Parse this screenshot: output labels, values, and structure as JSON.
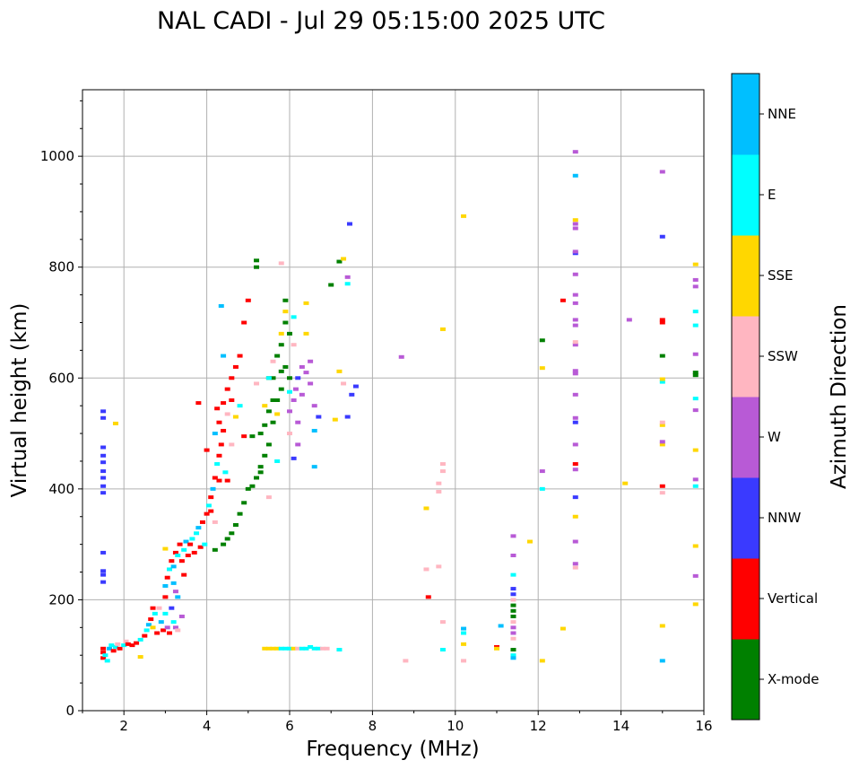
{
  "chart_data": {
    "type": "scatter",
    "title": "NAL CADI - Jul 29 05:15:00 2025 UTC",
    "xlabel": "Frequency (MHz)",
    "ylabel": "Virtual height (km)",
    "xlim": [
      1,
      16
    ],
    "ylim": [
      0,
      1120
    ],
    "xticks": [
      2,
      4,
      6,
      8,
      10,
      12,
      14,
      16
    ],
    "yticks": [
      0,
      200,
      400,
      600,
      800,
      1000
    ],
    "grid": true,
    "colorbar": {
      "label": "Azimuth Direction",
      "categories": [
        "X-mode",
        "Vertical",
        "NNW",
        "W",
        "SSW",
        "SSE",
        "E",
        "NNE"
      ],
      "colors": [
        "#008000",
        "#ff0000",
        "#3a3aff",
        "#b85ad6",
        "#ffb6c1",
        "#ffd700",
        "#00ffff",
        "#00bfff"
      ]
    },
    "points_format": "[frequency_MHz, virtual_height_km, direction_index]",
    "points": [
      [
        1.5,
        95,
        1
      ],
      [
        1.5,
        105,
        1
      ],
      [
        1.5,
        112,
        1
      ],
      [
        1.55,
        100,
        6
      ],
      [
        1.6,
        90,
        6
      ],
      [
        1.65,
        112,
        7
      ],
      [
        1.7,
        118,
        6
      ],
      [
        1.75,
        108,
        1
      ],
      [
        1.8,
        115,
        6
      ],
      [
        1.85,
        120,
        4
      ],
      [
        1.9,
        112,
        1
      ],
      [
        2.0,
        118,
        6
      ],
      [
        2.05,
        125,
        4
      ],
      [
        2.1,
        120,
        1
      ],
      [
        2.2,
        118,
        1
      ],
      [
        2.3,
        122,
        1
      ],
      [
        2.4,
        128,
        6
      ],
      [
        1.8,
        518,
        5
      ],
      [
        2.4,
        97,
        5
      ],
      [
        1.5,
        232,
        2
      ],
      [
        1.5,
        245,
        2
      ],
      [
        1.5,
        252,
        2
      ],
      [
        1.5,
        285,
        2
      ],
      [
        1.5,
        393,
        2
      ],
      [
        1.5,
        405,
        2
      ],
      [
        1.5,
        420,
        2
      ],
      [
        1.5,
        432,
        2
      ],
      [
        1.5,
        448,
        2
      ],
      [
        1.5,
        460,
        2
      ],
      [
        1.5,
        475,
        2
      ],
      [
        1.5,
        528,
        2
      ],
      [
        1.5,
        540,
        2
      ],
      [
        2.5,
        135,
        1
      ],
      [
        2.55,
        145,
        6
      ],
      [
        2.6,
        155,
        7
      ],
      [
        2.65,
        165,
        1
      ],
      [
        2.7,
        150,
        5
      ],
      [
        2.75,
        175,
        6
      ],
      [
        2.8,
        140,
        1
      ],
      [
        2.85,
        185,
        4
      ],
      [
        2.9,
        160,
        7
      ],
      [
        2.95,
        145,
        1
      ],
      [
        3.0,
        175,
        6
      ],
      [
        3.05,
        150,
        3
      ],
      [
        3.1,
        140,
        1
      ],
      [
        3.15,
        185,
        2
      ],
      [
        3.2,
        160,
        6
      ],
      [
        3.25,
        150,
        3
      ],
      [
        3.3,
        145,
        4
      ],
      [
        3.4,
        170,
        3
      ],
      [
        2.7,
        185,
        1
      ],
      [
        3.0,
        205,
        1
      ],
      [
        3.0,
        225,
        7
      ],
      [
        3.05,
        240,
        1
      ],
      [
        3.1,
        255,
        6
      ],
      [
        3.15,
        270,
        1
      ],
      [
        3.2,
        260,
        7
      ],
      [
        3.25,
        285,
        1
      ],
      [
        3.3,
        280,
        6
      ],
      [
        3.35,
        300,
        1
      ],
      [
        3.4,
        270,
        1
      ],
      [
        3.45,
        290,
        6
      ],
      [
        3.5,
        305,
        7
      ],
      [
        3.55,
        280,
        1
      ],
      [
        3.6,
        300,
        1
      ],
      [
        3.65,
        310,
        6
      ],
      [
        3.7,
        285,
        1
      ],
      [
        3.75,
        320,
        6
      ],
      [
        3.8,
        330,
        7
      ],
      [
        3.85,
        295,
        1
      ],
      [
        3.9,
        340,
        1
      ],
      [
        3.95,
        300,
        6
      ],
      [
        3.45,
        245,
        1
      ],
      [
        3.2,
        230,
        7
      ],
      [
        3.0,
        292,
        5
      ],
      [
        3.25,
        215,
        3
      ],
      [
        3.3,
        205,
        7
      ],
      [
        4.0,
        355,
        1
      ],
      [
        4.05,
        370,
        6
      ],
      [
        4.1,
        385,
        1
      ],
      [
        4.15,
        400,
        7
      ],
      [
        4.2,
        420,
        1
      ],
      [
        4.25,
        445,
        6
      ],
      [
        4.3,
        460,
        1
      ],
      [
        4.35,
        480,
        1
      ],
      [
        4.2,
        500,
        7
      ],
      [
        4.3,
        520,
        1
      ],
      [
        4.25,
        545,
        1
      ],
      [
        4.4,
        555,
        1
      ],
      [
        4.1,
        360,
        1
      ],
      [
        4.2,
        340,
        4
      ],
      [
        4.3,
        415,
        1
      ],
      [
        4.5,
        415,
        1
      ],
      [
        4.45,
        430,
        6
      ],
      [
        4.4,
        505,
        1
      ],
      [
        4.5,
        535,
        4
      ],
      [
        4.6,
        560,
        1
      ],
      [
        4.5,
        580,
        1
      ],
      [
        4.6,
        600,
        1
      ],
      [
        4.7,
        620,
        1
      ],
      [
        4.8,
        640,
        1
      ],
      [
        4.4,
        640,
        7
      ],
      [
        4.35,
        730,
        7
      ],
      [
        4.9,
        700,
        1
      ],
      [
        5.0,
        740,
        1
      ],
      [
        4.7,
        530,
        5
      ],
      [
        4.9,
        495,
        1
      ],
      [
        4.0,
        470,
        1
      ],
      [
        3.8,
        555,
        1
      ],
      [
        4.6,
        480,
        4
      ],
      [
        4.8,
        550,
        6
      ],
      [
        4.2,
        290,
        0
      ],
      [
        4.4,
        300,
        0
      ],
      [
        4.5,
        310,
        0
      ],
      [
        4.6,
        320,
        0
      ],
      [
        4.7,
        335,
        0
      ],
      [
        4.8,
        355,
        0
      ],
      [
        4.9,
        375,
        0
      ],
      [
        5.0,
        400,
        0
      ],
      [
        5.1,
        405,
        0
      ],
      [
        5.2,
        420,
        0
      ],
      [
        5.3,
        440,
        0
      ],
      [
        5.4,
        460,
        0
      ],
      [
        5.5,
        480,
        0
      ],
      [
        5.3,
        500,
        0
      ],
      [
        5.6,
        520,
        0
      ],
      [
        5.5,
        540,
        0
      ],
      [
        5.7,
        560,
        0
      ],
      [
        5.8,
        580,
        0
      ],
      [
        5.6,
        600,
        0
      ],
      [
        5.9,
        620,
        0
      ],
      [
        5.7,
        640,
        0
      ],
      [
        5.8,
        660,
        0
      ],
      [
        6.0,
        680,
        0
      ],
      [
        5.9,
        700,
        0
      ],
      [
        5.9,
        740,
        0
      ],
      [
        5.2,
        800,
        0
      ],
      [
        5.2,
        812,
        0
      ],
      [
        5.5,
        600,
        0
      ],
      [
        5.1,
        495,
        0
      ],
      [
        5.4,
        515,
        0
      ],
      [
        5.6,
        560,
        0
      ],
      [
        6.0,
        600,
        0
      ],
      [
        5.8,
        612,
        0
      ],
      [
        5.3,
        430,
        0
      ],
      [
        5.4,
        550,
        5
      ],
      [
        5.5,
        600,
        6
      ],
      [
        5.6,
        630,
        4
      ],
      [
        5.8,
        680,
        5
      ],
      [
        5.9,
        720,
        5
      ],
      [
        6.0,
        575,
        6
      ],
      [
        6.1,
        660,
        4
      ],
      [
        5.2,
        590,
        4
      ],
      [
        5.8,
        807,
        4
      ],
      [
        5.7,
        450,
        6
      ],
      [
        6.1,
        710,
        6
      ],
      [
        6.4,
        735,
        5
      ],
      [
        6.4,
        680,
        5
      ],
      [
        5.5,
        385,
        4
      ],
      [
        5.7,
        535,
        5
      ],
      [
        6.0,
        500,
        4
      ],
      [
        6.0,
        540,
        3
      ],
      [
        6.1,
        560,
        3
      ],
      [
        6.15,
        580,
        3
      ],
      [
        6.2,
        600,
        2
      ],
      [
        6.3,
        620,
        3
      ],
      [
        6.4,
        610,
        3
      ],
      [
        6.5,
        630,
        3
      ],
      [
        6.3,
        570,
        3
      ],
      [
        6.2,
        520,
        3
      ],
      [
        6.5,
        590,
        3
      ],
      [
        6.6,
        550,
        3
      ],
      [
        6.2,
        480,
        3
      ],
      [
        6.6,
        440,
        7
      ],
      [
        6.6,
        505,
        7
      ],
      [
        6.7,
        530,
        2
      ],
      [
        6.1,
        455,
        2
      ],
      [
        7.2,
        612,
        5
      ],
      [
        7.3,
        590,
        4
      ],
      [
        7.5,
        570,
        2
      ],
      [
        7.4,
        530,
        2
      ],
      [
        7.4,
        782,
        3
      ],
      [
        7.4,
        770,
        6
      ],
      [
        7.45,
        878,
        2
      ],
      [
        7.2,
        810,
        0
      ],
      [
        7.3,
        815,
        5
      ],
      [
        7.0,
        768,
        0
      ],
      [
        7.1,
        525,
        5
      ],
      [
        7.6,
        585,
        2
      ],
      [
        5.4,
        112,
        5
      ],
      [
        5.5,
        112,
        5
      ],
      [
        5.6,
        112,
        5
      ],
      [
        5.7,
        112,
        5
      ],
      [
        5.8,
        112,
        6
      ],
      [
        5.9,
        112,
        6
      ],
      [
        6.0,
        112,
        6
      ],
      [
        6.1,
        112,
        5
      ],
      [
        6.2,
        112,
        4
      ],
      [
        6.3,
        112,
        6
      ],
      [
        6.4,
        112,
        6
      ],
      [
        6.5,
        115,
        6
      ],
      [
        6.6,
        112,
        6
      ],
      [
        6.7,
        112,
        6
      ],
      [
        6.8,
        112,
        4
      ],
      [
        6.9,
        112,
        4
      ],
      [
        7.2,
        110,
        6
      ],
      [
        8.7,
        638,
        3
      ],
      [
        8.8,
        90,
        4
      ],
      [
        9.3,
        365,
        5
      ],
      [
        9.3,
        255,
        4
      ],
      [
        9.35,
        205,
        1
      ],
      [
        9.6,
        410,
        4
      ],
      [
        9.6,
        395,
        4
      ],
      [
        9.6,
        260,
        4
      ],
      [
        9.7,
        445,
        4
      ],
      [
        9.7,
        432,
        4
      ],
      [
        9.7,
        160,
        4
      ],
      [
        9.7,
        110,
        6
      ],
      [
        9.7,
        688,
        5
      ],
      [
        10.2,
        892,
        5
      ],
      [
        10.2,
        148,
        7
      ],
      [
        10.2,
        140,
        6
      ],
      [
        10.2,
        120,
        5
      ],
      [
        10.2,
        90,
        4
      ],
      [
        11.0,
        115,
        1
      ],
      [
        11.0,
        112,
        5
      ],
      [
        11.1,
        153,
        7
      ],
      [
        11.4,
        100,
        6
      ],
      [
        11.4,
        110,
        0
      ],
      [
        11.4,
        130,
        4
      ],
      [
        11.4,
        140,
        3
      ],
      [
        11.4,
        150,
        3
      ],
      [
        11.4,
        160,
        4
      ],
      [
        11.4,
        170,
        0
      ],
      [
        11.4,
        180,
        0
      ],
      [
        11.4,
        190,
        0
      ],
      [
        11.4,
        200,
        4
      ],
      [
        11.4,
        210,
        2
      ],
      [
        11.4,
        220,
        2
      ],
      [
        11.4,
        245,
        6
      ],
      [
        11.4,
        280,
        3
      ],
      [
        11.4,
        315,
        3
      ],
      [
        11.4,
        95,
        7
      ],
      [
        11.8,
        305,
        5
      ],
      [
        12.1,
        90,
        5
      ],
      [
        12.1,
        400,
        6
      ],
      [
        12.1,
        432,
        3
      ],
      [
        12.1,
        618,
        5
      ],
      [
        12.1,
        668,
        0
      ],
      [
        12.6,
        148,
        5
      ],
      [
        12.6,
        740,
        1
      ],
      [
        12.9,
        258,
        4
      ],
      [
        12.9,
        265,
        3
      ],
      [
        12.9,
        305,
        3
      ],
      [
        12.9,
        350,
        5
      ],
      [
        12.9,
        385,
        2
      ],
      [
        12.9,
        435,
        3
      ],
      [
        12.9,
        445,
        1
      ],
      [
        12.9,
        480,
        3
      ],
      [
        12.9,
        520,
        2
      ],
      [
        12.9,
        528,
        3
      ],
      [
        12.9,
        570,
        3
      ],
      [
        12.9,
        608,
        3
      ],
      [
        12.9,
        613,
        3
      ],
      [
        12.9,
        660,
        3
      ],
      [
        12.9,
        665,
        4
      ],
      [
        12.9,
        695,
        3
      ],
      [
        12.9,
        705,
        3
      ],
      [
        12.9,
        735,
        3
      ],
      [
        12.9,
        750,
        3
      ],
      [
        12.9,
        787,
        3
      ],
      [
        12.9,
        825,
        2
      ],
      [
        12.9,
        828,
        3
      ],
      [
        12.9,
        870,
        3
      ],
      [
        12.9,
        878,
        3
      ],
      [
        12.9,
        885,
        5
      ],
      [
        12.9,
        965,
        7
      ],
      [
        12.9,
        1008,
        3
      ],
      [
        14.1,
        410,
        5
      ],
      [
        14.2,
        705,
        3
      ],
      [
        15.0,
        90,
        7
      ],
      [
        15.0,
        153,
        5
      ],
      [
        15.0,
        393,
        4
      ],
      [
        15.0,
        405,
        1
      ],
      [
        15.0,
        480,
        5
      ],
      [
        15.0,
        485,
        3
      ],
      [
        15.0,
        515,
        5
      ],
      [
        15.0,
        520,
        4
      ],
      [
        15.0,
        593,
        6
      ],
      [
        15.0,
        598,
        5
      ],
      [
        15.0,
        640,
        0
      ],
      [
        15.0,
        700,
        1
      ],
      [
        15.0,
        705,
        1
      ],
      [
        15.0,
        855,
        2
      ],
      [
        15.0,
        972,
        3
      ],
      [
        15.8,
        192,
        5
      ],
      [
        15.8,
        243,
        3
      ],
      [
        15.8,
        297,
        5
      ],
      [
        15.8,
        405,
        6
      ],
      [
        15.8,
        417,
        3
      ],
      [
        15.8,
        470,
        5
      ],
      [
        15.8,
        542,
        3
      ],
      [
        15.8,
        563,
        6
      ],
      [
        15.8,
        605,
        0
      ],
      [
        15.8,
        610,
        0
      ],
      [
        15.8,
        643,
        3
      ],
      [
        15.8,
        695,
        6
      ],
      [
        15.8,
        720,
        6
      ],
      [
        15.8,
        765,
        3
      ],
      [
        15.8,
        777,
        3
      ],
      [
        15.8,
        805,
        5
      ]
    ]
  }
}
